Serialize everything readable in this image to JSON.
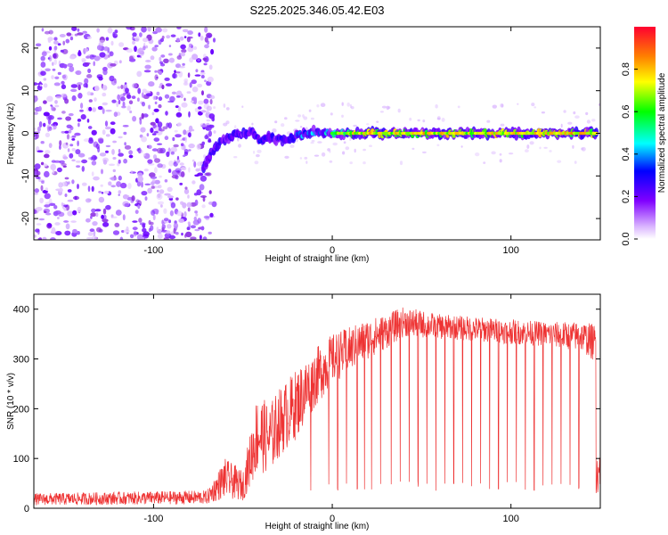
{
  "title": "S225.2025.346.05.42.E03",
  "chart_data": [
    {
      "type": "heatmap",
      "xlabel": "Height of straight line (km)",
      "ylabel": "Frequency (Hz)",
      "xlim": [
        -167,
        150
      ],
      "ylim": [
        -25,
        25
      ],
      "xticks": [
        -100,
        0,
        100
      ],
      "yticks": [
        -20,
        -10,
        0,
        10,
        20
      ],
      "colorbar": {
        "label": "Normalized spectral amplitude",
        "range": [
          0.0,
          1.0
        ],
        "ticks": [
          0.0,
          0.2,
          0.4,
          0.6,
          0.8
        ],
        "colors": [
          "#ffffff",
          "#d9b3ff",
          "#8000ff",
          "#0000ff",
          "#00ffff",
          "#00ff00",
          "#ffff00",
          "#ff8000",
          "#ff0000"
        ]
      },
      "noise_region_x": [
        -167,
        -68
      ],
      "signal_track": {
        "x": [
          -72,
          -68,
          -62,
          -55,
          -50,
          -45,
          -40,
          -35,
          -30,
          -25,
          -20,
          -15,
          -10,
          -5,
          0,
          20,
          40,
          60,
          80,
          100,
          120,
          148
        ],
        "freq": [
          -8,
          -5,
          -2,
          -0.5,
          0,
          0.5,
          -1.5,
          -1,
          -1.5,
          -1.5,
          -0.5,
          0,
          0.5,
          0.3,
          0,
          0,
          0,
          0,
          0,
          0,
          0,
          0
        ],
        "amplitude": [
          0.35,
          0.3,
          0.35,
          0.35,
          0.3,
          0.3,
          0.4,
          0.35,
          0.35,
          0.45,
          0.45,
          0.5,
          0.5,
          0.6,
          0.7,
          0.85,
          0.8,
          0.85,
          0.8,
          0.8,
          0.85,
          0.85
        ]
      }
    },
    {
      "type": "line",
      "xlabel": "Height of straight line (km)",
      "ylabel": "SNR (10 * v/v)",
      "xlim": [
        -167,
        150
      ],
      "ylim": [
        0,
        430
      ],
      "xticks": [
        -100,
        0,
        100
      ],
      "yticks": [
        0,
        100,
        200,
        300,
        400
      ],
      "color": "#ee3333",
      "envelope": {
        "x": [
          -167,
          -70,
          -60,
          -50,
          -42,
          -35,
          -30,
          -20,
          -10,
          0,
          10,
          20,
          30,
          40,
          60,
          80,
          100,
          120,
          140,
          148
        ],
        "mean": [
          18,
          22,
          60,
          45,
          150,
          140,
          170,
          210,
          260,
          300,
          320,
          340,
          355,
          375,
          365,
          360,
          355,
          350,
          345,
          330
        ],
        "spread": [
          12,
          14,
          40,
          30,
          80,
          70,
          70,
          70,
          60,
          50,
          45,
          40,
          35,
          30,
          25,
          25,
          25,
          25,
          30,
          40
        ]
      },
      "dropouts": {
        "x": [
          -12,
          -2,
          3,
          8,
          14,
          18,
          22,
          27,
          33,
          38,
          43,
          48,
          53,
          58,
          63,
          68,
          73,
          78,
          83,
          88,
          93,
          98,
          103,
          108,
          113,
          118,
          123,
          128,
          133,
          138
        ],
        "min_value": 35
      }
    }
  ]
}
